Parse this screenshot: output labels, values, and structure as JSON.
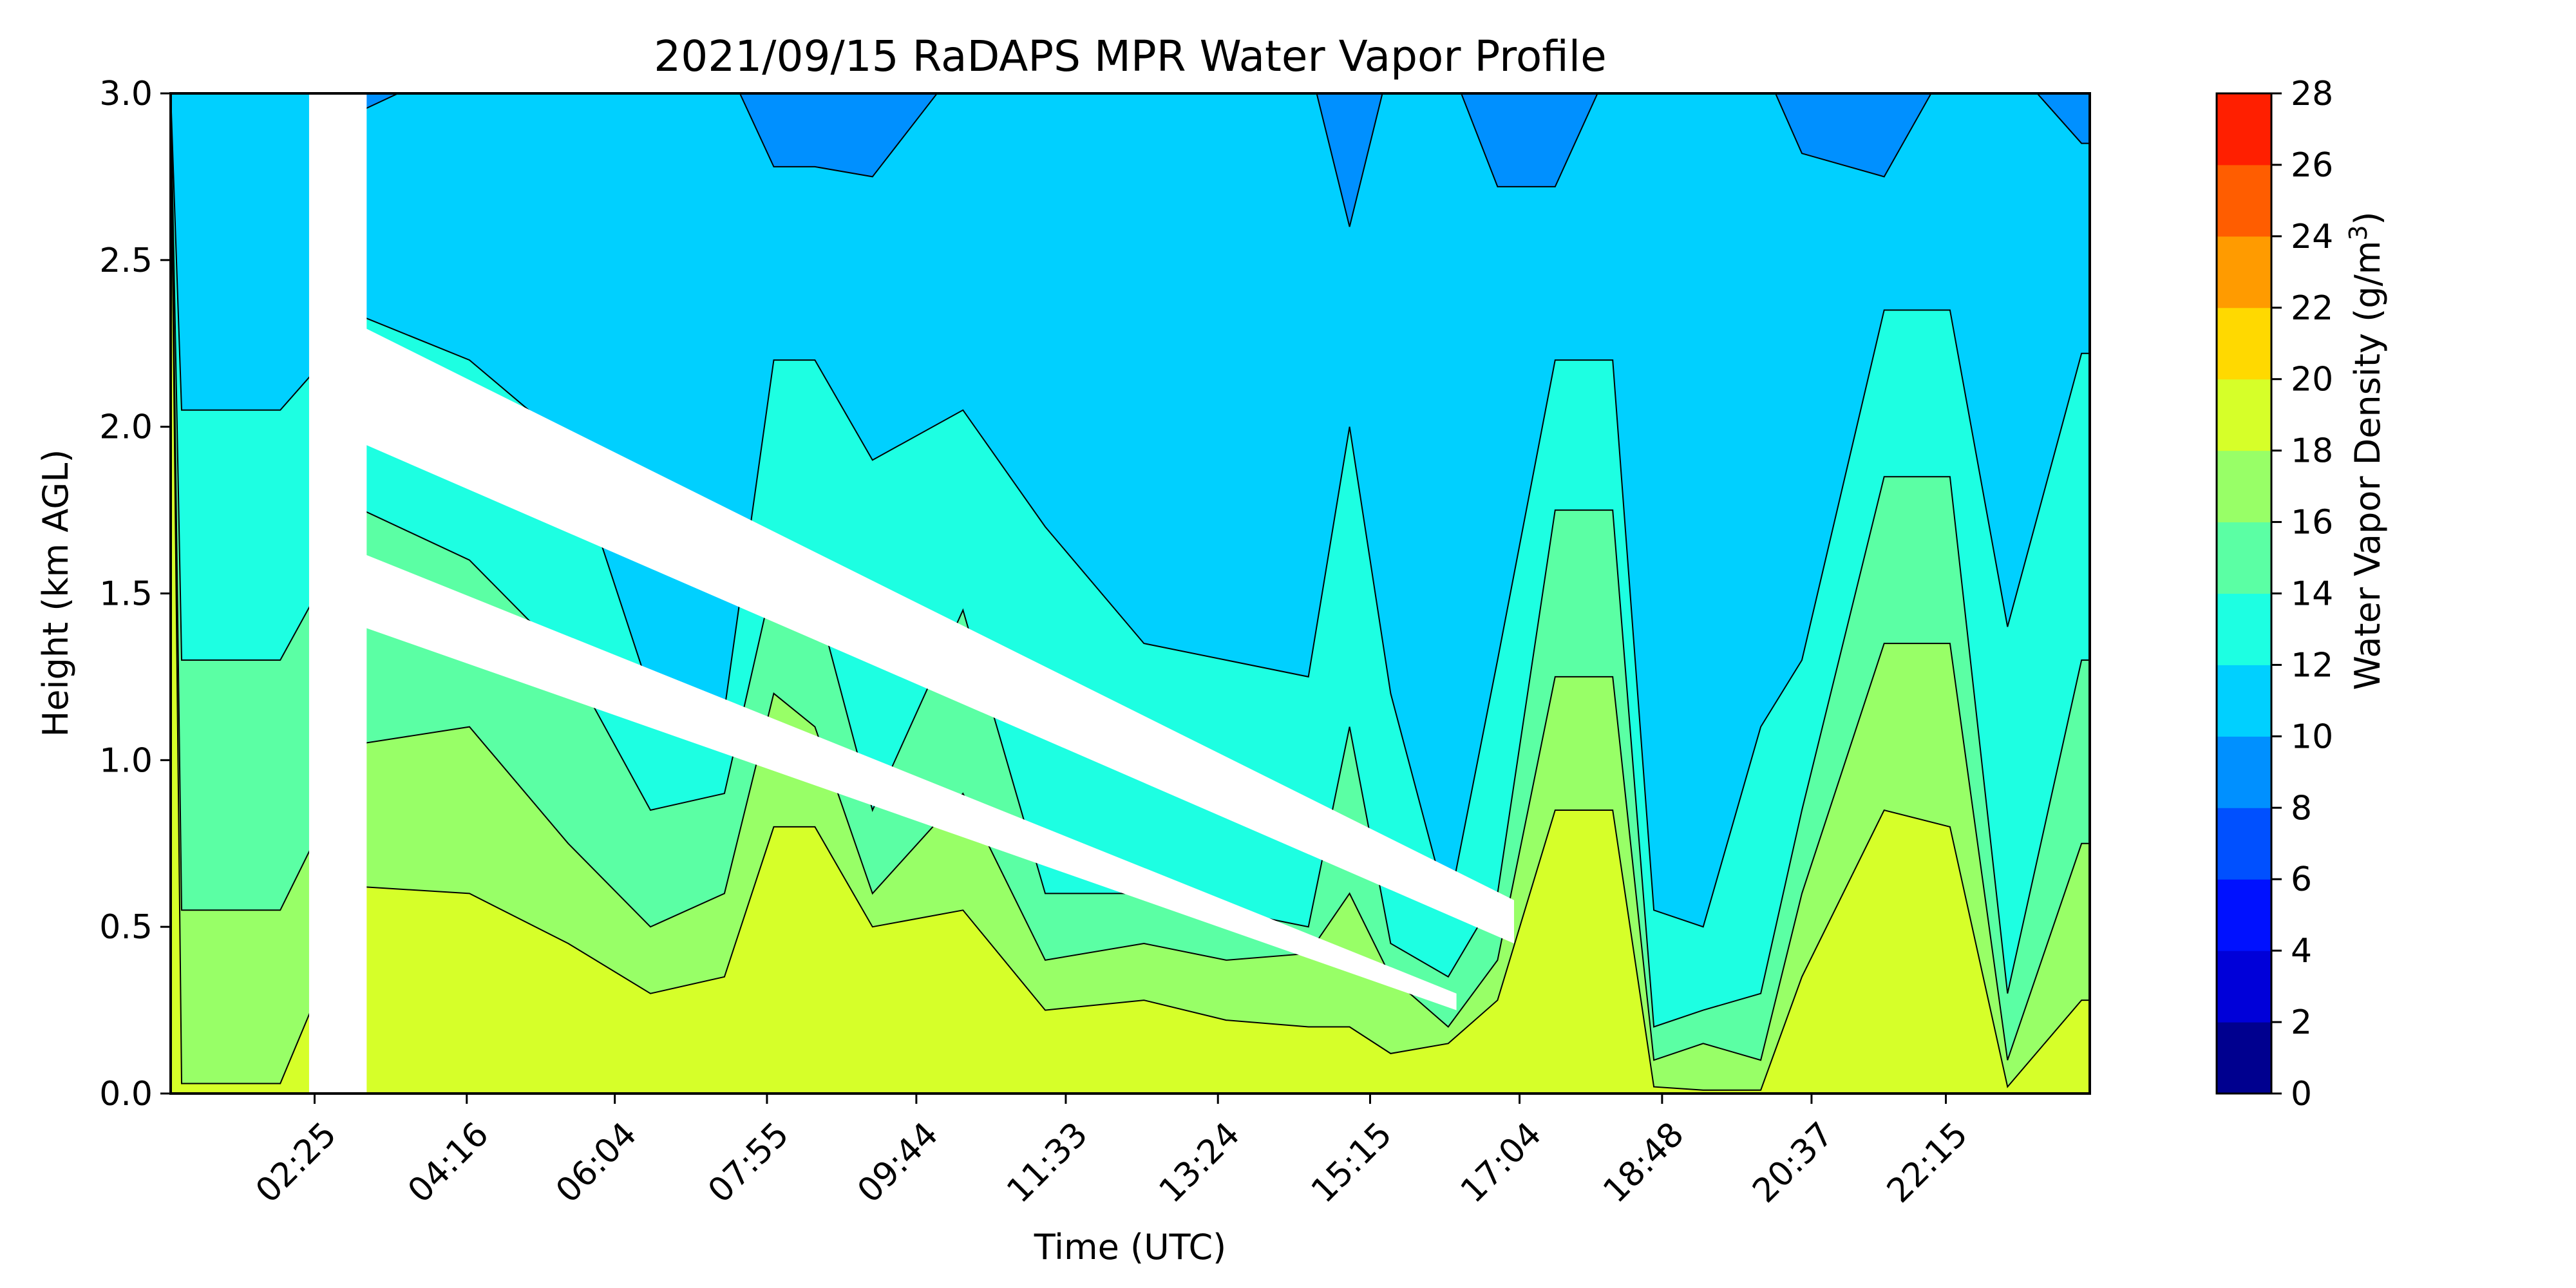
{
  "chart_data": {
    "type": "heatmap",
    "title": "2021/09/15 RaDAPS MPR Water Vapor Profile",
    "xlabel": "Time (UTC)",
    "ylabel": "Height (km AGL)",
    "colorbar_label": "Water Vapor Density (g/m",
    "colorbar_label_sup": "3",
    "colorbar_label_end": ")",
    "xlim": [
      "00:40",
      "24:00"
    ],
    "xticks": [
      "02:25",
      "04:16",
      "06:04",
      "07:55",
      "09:44",
      "11:33",
      "13:24",
      "15:15",
      "17:04",
      "18:48",
      "20:37",
      "22:15"
    ],
    "xtick_hours": [
      2.417,
      4.267,
      6.067,
      7.917,
      9.733,
      11.55,
      13.4,
      15.25,
      17.067,
      18.8,
      20.617,
      22.25
    ],
    "ylim": [
      0,
      3.0
    ],
    "yticks": [
      "0.0",
      "0.5",
      "1.0",
      "1.5",
      "2.0",
      "2.5",
      "3.0"
    ],
    "levels": [
      0,
      2,
      4,
      6,
      8,
      10,
      12,
      14,
      16,
      18,
      20,
      22,
      24,
      26,
      28
    ],
    "level_tick_labels": [
      "0",
      "2",
      "4",
      "6",
      "8",
      "10",
      "12",
      "14",
      "16",
      "18",
      "20",
      "22",
      "24",
      "26",
      "28"
    ],
    "level_colors": [
      "#00008f",
      "#0000d9",
      "#0011ff",
      "#0050ff",
      "#0090ff",
      "#00d0ff",
      "#1dffe2",
      "#5bffa4",
      "#98ff67",
      "#d6ff29",
      "#ffd900",
      "#ff9b00",
      "#ff5d00",
      "#ff1f00",
      "#b10000"
    ],
    "contour_boundaries_km": {
      "times_h": [
        0.8,
        2.0,
        3.0,
        4.3,
        5.5,
        6.5,
        7.4,
        8.0,
        8.5,
        9.2,
        10.3,
        11.3,
        12.5,
        13.5,
        14.5,
        15.0,
        15.5,
        16.2,
        16.8,
        17.5,
        18.2,
        18.7,
        19.3,
        20.0,
        20.5,
        21.5,
        22.3,
        23.0,
        23.9
      ],
      "b16": [
        0.03,
        0.03,
        0.62,
        0.6,
        0.45,
        0.3,
        0.35,
        0.8,
        0.8,
        0.5,
        0.55,
        0.25,
        0.28,
        0.22,
        0.2,
        0.2,
        0.12,
        0.15,
        0.28,
        0.85,
        0.85,
        0.02,
        0.01,
        0.01,
        0.35,
        0.85,
        0.8,
        0.02,
        0.28
      ],
      "b14": [
        0.55,
        0.55,
        1.05,
        1.1,
        0.75,
        0.5,
        0.6,
        1.2,
        1.1,
        0.6,
        0.9,
        0.4,
        0.45,
        0.4,
        0.42,
        0.6,
        0.35,
        0.2,
        0.4,
        1.25,
        1.25,
        0.1,
        0.15,
        0.1,
        0.6,
        1.35,
        1.35,
        0.1,
        0.75
      ],
      "b12": [
        1.3,
        1.3,
        1.75,
        1.6,
        1.3,
        0.85,
        0.9,
        1.55,
        1.5,
        0.85,
        1.45,
        0.6,
        0.6,
        0.55,
        0.5,
        1.1,
        0.45,
        0.35,
        0.6,
        1.75,
        1.75,
        0.2,
        0.25,
        0.3,
        0.85,
        1.85,
        1.85,
        0.3,
        1.3
      ],
      "b10": [
        2.05,
        2.05,
        2.33,
        2.2,
        1.95,
        1.2,
        1.15,
        2.2,
        2.2,
        1.9,
        2.05,
        1.7,
        1.35,
        1.3,
        1.25,
        2.0,
        1.2,
        0.55,
        1.3,
        2.2,
        2.2,
        0.55,
        0.5,
        1.1,
        1.3,
        2.35,
        2.35,
        1.4,
        2.22
      ],
      "b8": [
        3.1,
        3.1,
        2.95,
        3.1,
        3.1,
        3.1,
        3.1,
        2.78,
        2.78,
        2.75,
        3.1,
        3.1,
        3.1,
        3.1,
        3.1,
        2.6,
        3.1,
        3.1,
        2.72,
        2.72,
        3.1,
        3.1,
        3.1,
        3.1,
        2.82,
        2.75,
        3.1,
        3.1,
        2.85
      ]
    }
  }
}
